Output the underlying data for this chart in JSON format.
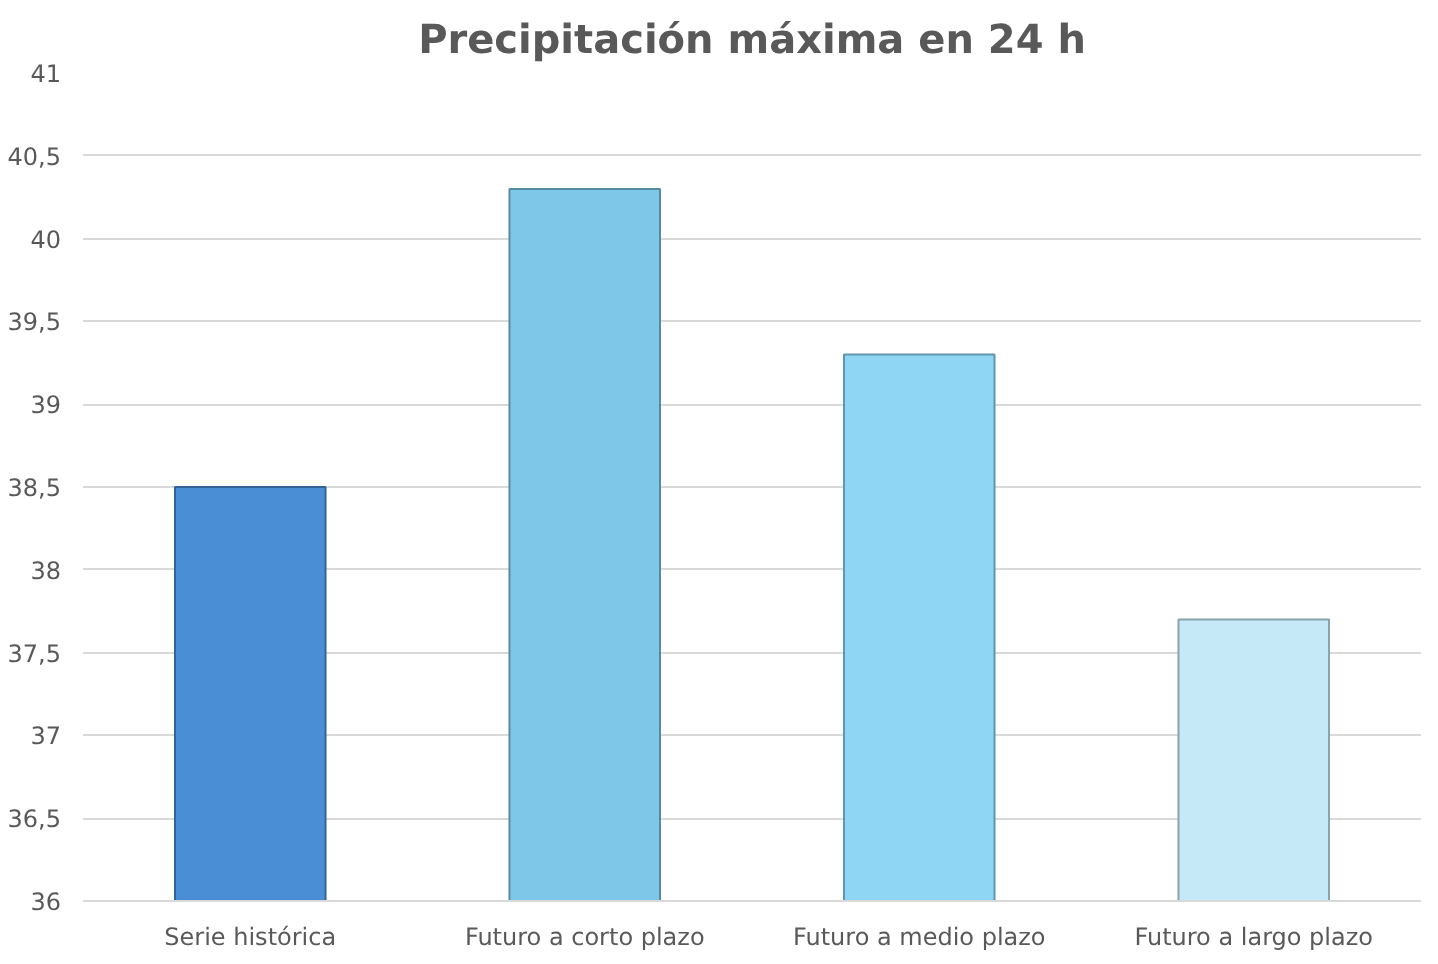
{
  "chart_data": {
    "type": "bar",
    "title": "Precipitación máxima en 24 h",
    "categories": [
      "Serie histórica",
      "Futuro a corto plazo",
      "Futuro a medio plazo",
      "Futuro a largo plazo"
    ],
    "values": [
      38.5,
      40.3,
      39.3,
      37.7
    ],
    "colors": [
      "#4a8fd6",
      "#7fc7e8",
      "#8ed6f4",
      "#c5e9f7"
    ],
    "ylim": [
      36,
      41
    ],
    "yticks": [
      36,
      {
        "value": 36.5,
        "label": "36,5"
      },
      37,
      {
        "value": 37.5,
        "label": "37,5"
      },
      38,
      {
        "value": 38.5,
        "label": "38,5"
      },
      39,
      {
        "value": 39.5,
        "label": "39,5"
      },
      40,
      {
        "value": 40.5,
        "label": "40,5"
      },
      41
    ],
    "grid": "y"
  }
}
